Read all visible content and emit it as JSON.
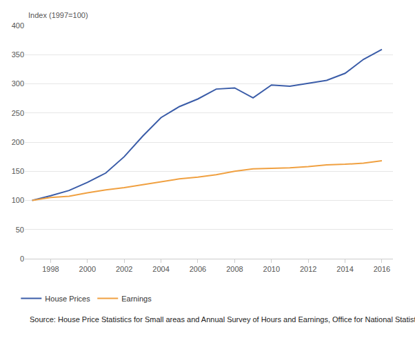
{
  "chart_data": {
    "type": "line",
    "ylabel": "Index (1997=100)",
    "annotations": [
      "Source: House Price Statistics for Small areas and Annual Survey of Hours and Earnings, Office for National Statistics"
    ],
    "x": [
      1997,
      1998,
      1999,
      2000,
      2001,
      2002,
      2003,
      2004,
      2005,
      2006,
      2007,
      2008,
      2009,
      2010,
      2011,
      2012,
      2013,
      2014,
      2015,
      2016
    ],
    "series": [
      {
        "name": "House Prices",
        "color": "#3a5ca8",
        "values": [
          100,
          108,
          117,
          131,
          147,
          175,
          210,
          242,
          261,
          274,
          291,
          293,
          276,
          298,
          296,
          301,
          306,
          318,
          342,
          359
        ]
      },
      {
        "name": "Earnings",
        "color": "#f0a040",
        "values": [
          100,
          105,
          107,
          113,
          118,
          122,
          127,
          132,
          137,
          140,
          144,
          150,
          154,
          155,
          156,
          158,
          161,
          162,
          164,
          168
        ]
      }
    ],
    "xlim": [
      1996.6,
      2016.6
    ],
    "xticks": [
      1998,
      2000,
      2002,
      2004,
      2006,
      2008,
      2010,
      2012,
      2014,
      2016
    ],
    "ylim": [
      0,
      400
    ],
    "yticks": [
      0,
      50,
      100,
      150,
      200,
      250,
      300,
      350,
      400
    ],
    "grid": true,
    "legend": "bottom"
  }
}
